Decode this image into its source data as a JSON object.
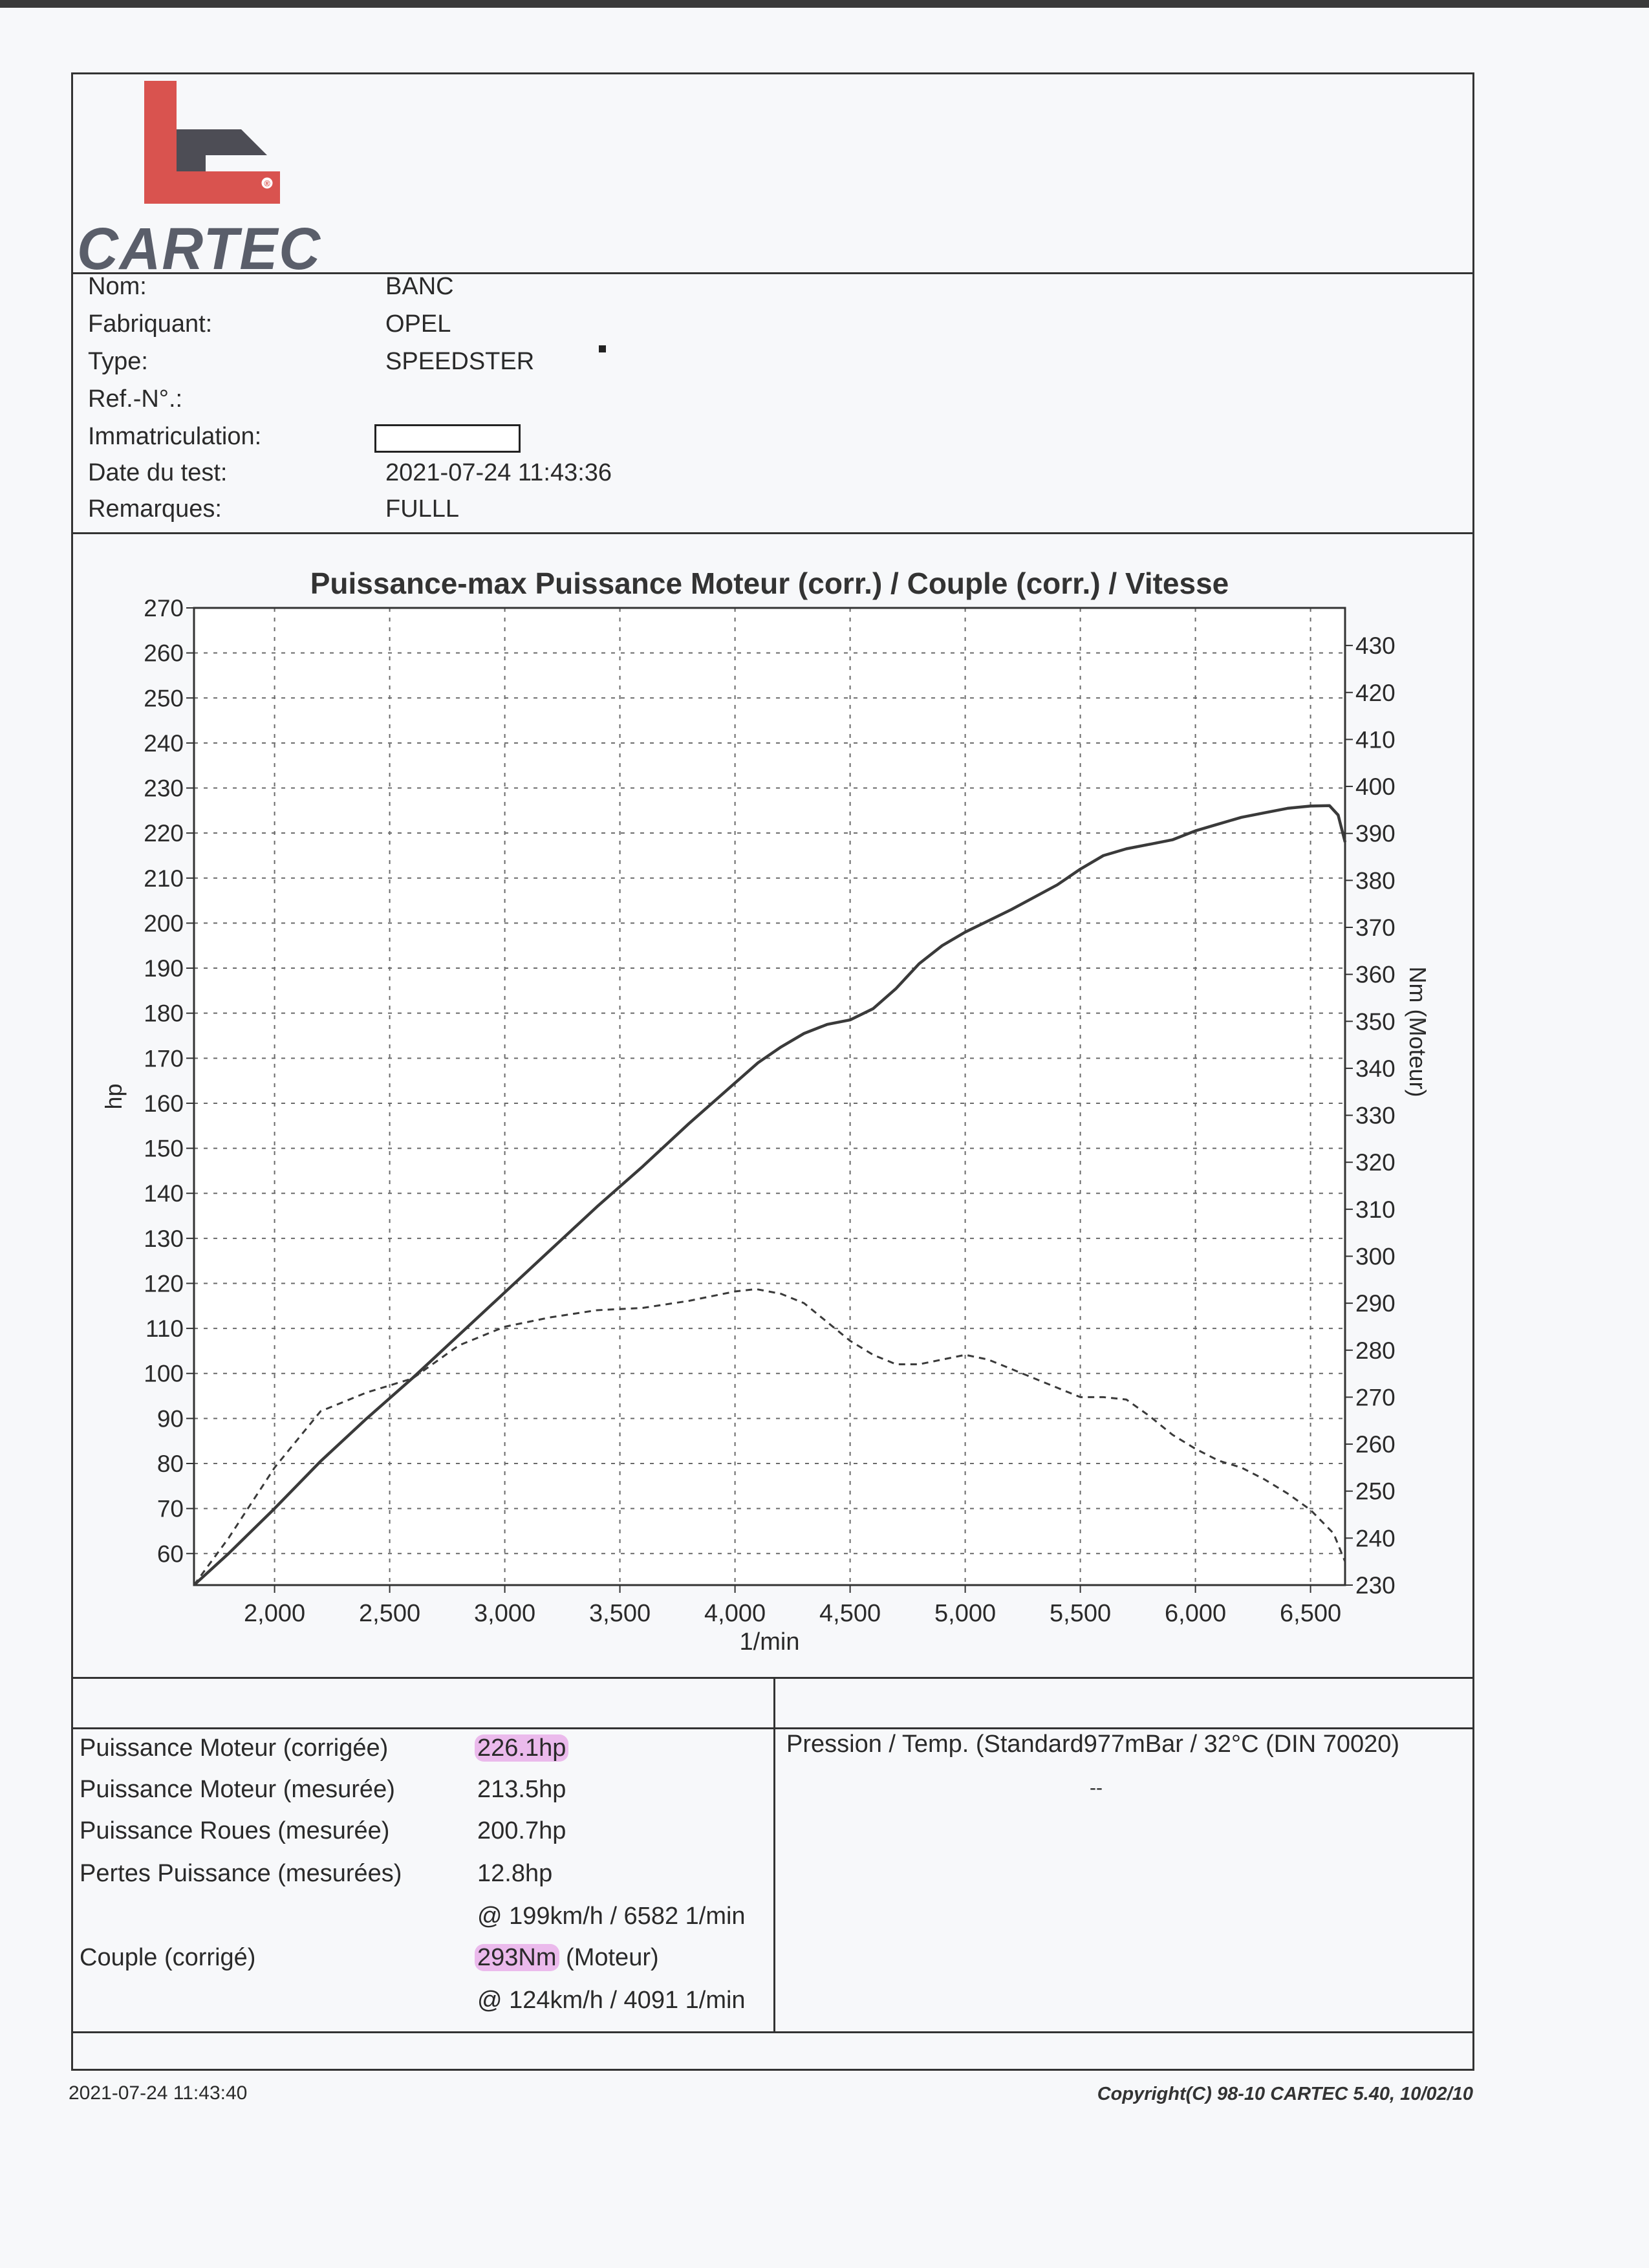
{
  "brand": {
    "name": "CARTEC",
    "accent_color": "#d9534f",
    "registered_mark": "®"
  },
  "vehicle": {
    "rows": [
      {
        "label": "Nom:",
        "value": "BANC"
      },
      {
        "label": "Fabriquant:",
        "value": "OPEL"
      },
      {
        "label": "Type:",
        "value": "SPEEDSTER"
      },
      {
        "label": "Ref.-N°.:",
        "value": ""
      },
      {
        "label": "Immatriculation:",
        "value": ""
      },
      {
        "label": "Date du test:",
        "value": "2021-07-24 11:43:36"
      },
      {
        "label": "Remarques:",
        "value": "FULLL"
      }
    ]
  },
  "chart_data": {
    "type": "line",
    "title": "Puissance-max Puissance Moteur (corr.) / Couple (corr.) / Vitesse",
    "xlabel": "1/min",
    "ylabel": "hp",
    "ylabel_right": "Nm (Moteur)",
    "xlim": [
      1650,
      6650
    ],
    "ylim": [
      53,
      270
    ],
    "ylim_right": [
      230,
      438
    ],
    "x_ticks": [
      2000,
      2500,
      3000,
      3500,
      4000,
      4500,
      5000,
      5500,
      6000,
      6500
    ],
    "x_tick_labels": [
      "2,000",
      "2,500",
      "3,000",
      "3,500",
      "4,000",
      "4,500",
      "5,000",
      "5,500",
      "6,000",
      "6,500"
    ],
    "y_ticks": [
      60,
      70,
      80,
      90,
      100,
      110,
      120,
      130,
      140,
      150,
      160,
      170,
      180,
      190,
      200,
      210,
      220,
      230,
      240,
      250,
      260,
      270
    ],
    "y_right_ticks": [
      230,
      240,
      250,
      260,
      270,
      280,
      290,
      300,
      310,
      320,
      330,
      340,
      350,
      360,
      370,
      380,
      390,
      400,
      410,
      420,
      430
    ],
    "grid": true,
    "series": [
      {
        "style": "solid",
        "axis": "left",
        "x": [
          1650,
          1800,
          2000,
          2200,
          2400,
          2600,
          2800,
          3000,
          3200,
          3400,
          3600,
          3800,
          4000,
          4100,
          4200,
          4300,
          4400,
          4500,
          4600,
          4700,
          4800,
          4900,
          5000,
          5200,
          5400,
          5500,
          5600,
          5700,
          5800,
          5900,
          6000,
          6100,
          6200,
          6300,
          6400,
          6500,
          6582,
          6620,
          6650
        ],
        "y": [
          53,
          60,
          70,
          80.5,
          90,
          99,
          108.5,
          118,
          127.5,
          137,
          146,
          155.5,
          164.5,
          169,
          172.5,
          175.5,
          177.5,
          178.5,
          181,
          185.5,
          191,
          195,
          198,
          203,
          208.5,
          212,
          215,
          216.5,
          217.5,
          218.5,
          220.5,
          222,
          223.5,
          224.5,
          225.5,
          226,
          226.1,
          224,
          218
        ]
      },
      {
        "style": "dashed",
        "axis": "right",
        "x": [
          1650,
          1800,
          2000,
          2200,
          2400,
          2600,
          2800,
          3000,
          3200,
          3400,
          3600,
          3800,
          3900,
          4000,
          4091,
          4200,
          4300,
          4400,
          4500,
          4600,
          4700,
          4800,
          4900,
          5000,
          5100,
          5200,
          5300,
          5400,
          5500,
          5600,
          5700,
          5800,
          5900,
          6000,
          6100,
          6200,
          6300,
          6400,
          6500,
          6600,
          6650
        ],
        "y": [
          230,
          240,
          255,
          267,
          271,
          274,
          281,
          285,
          287,
          288.5,
          289,
          290.5,
          291.5,
          292.5,
          293,
          292,
          290,
          286,
          282,
          279,
          277,
          277,
          278,
          279,
          278,
          276,
          274,
          272,
          270,
          270,
          269.5,
          266,
          262,
          259,
          256.5,
          255,
          252.5,
          249.5,
          246,
          241,
          235
        ]
      }
    ]
  },
  "results": {
    "rows": [
      {
        "label": "Puissance Moteur (corrigée)",
        "value": "226.1hp",
        "highlight": true
      },
      {
        "label": "Puissance Moteur (mesurée)",
        "value": "213.5hp"
      },
      {
        "label": "Puissance Roues (mesurée)",
        "value": "200.7hp"
      },
      {
        "label": "Pertes Puissance (mesurées)",
        "value": "12.8hp"
      },
      {
        "label": "",
        "value": "@ 199km/h / 6582 1/min"
      },
      {
        "label": "Couple (corrigé)",
        "value": "293Nm",
        "suffix": " (Moteur)",
        "highlight": true
      },
      {
        "label": "",
        "value": "@ 124km/h / 4091 1/min"
      }
    ],
    "conditions": "Pression / Temp. (Standard977mBar / 32°C    (DIN 70020)",
    "conditions_sub": "--",
    "highlight_color": "#dc6edc"
  },
  "footer": {
    "printed": "2021-07-24 11:43:40",
    "copyright": "Copyright(C) 98-10 CARTEC 5.40, 10/02/10"
  }
}
